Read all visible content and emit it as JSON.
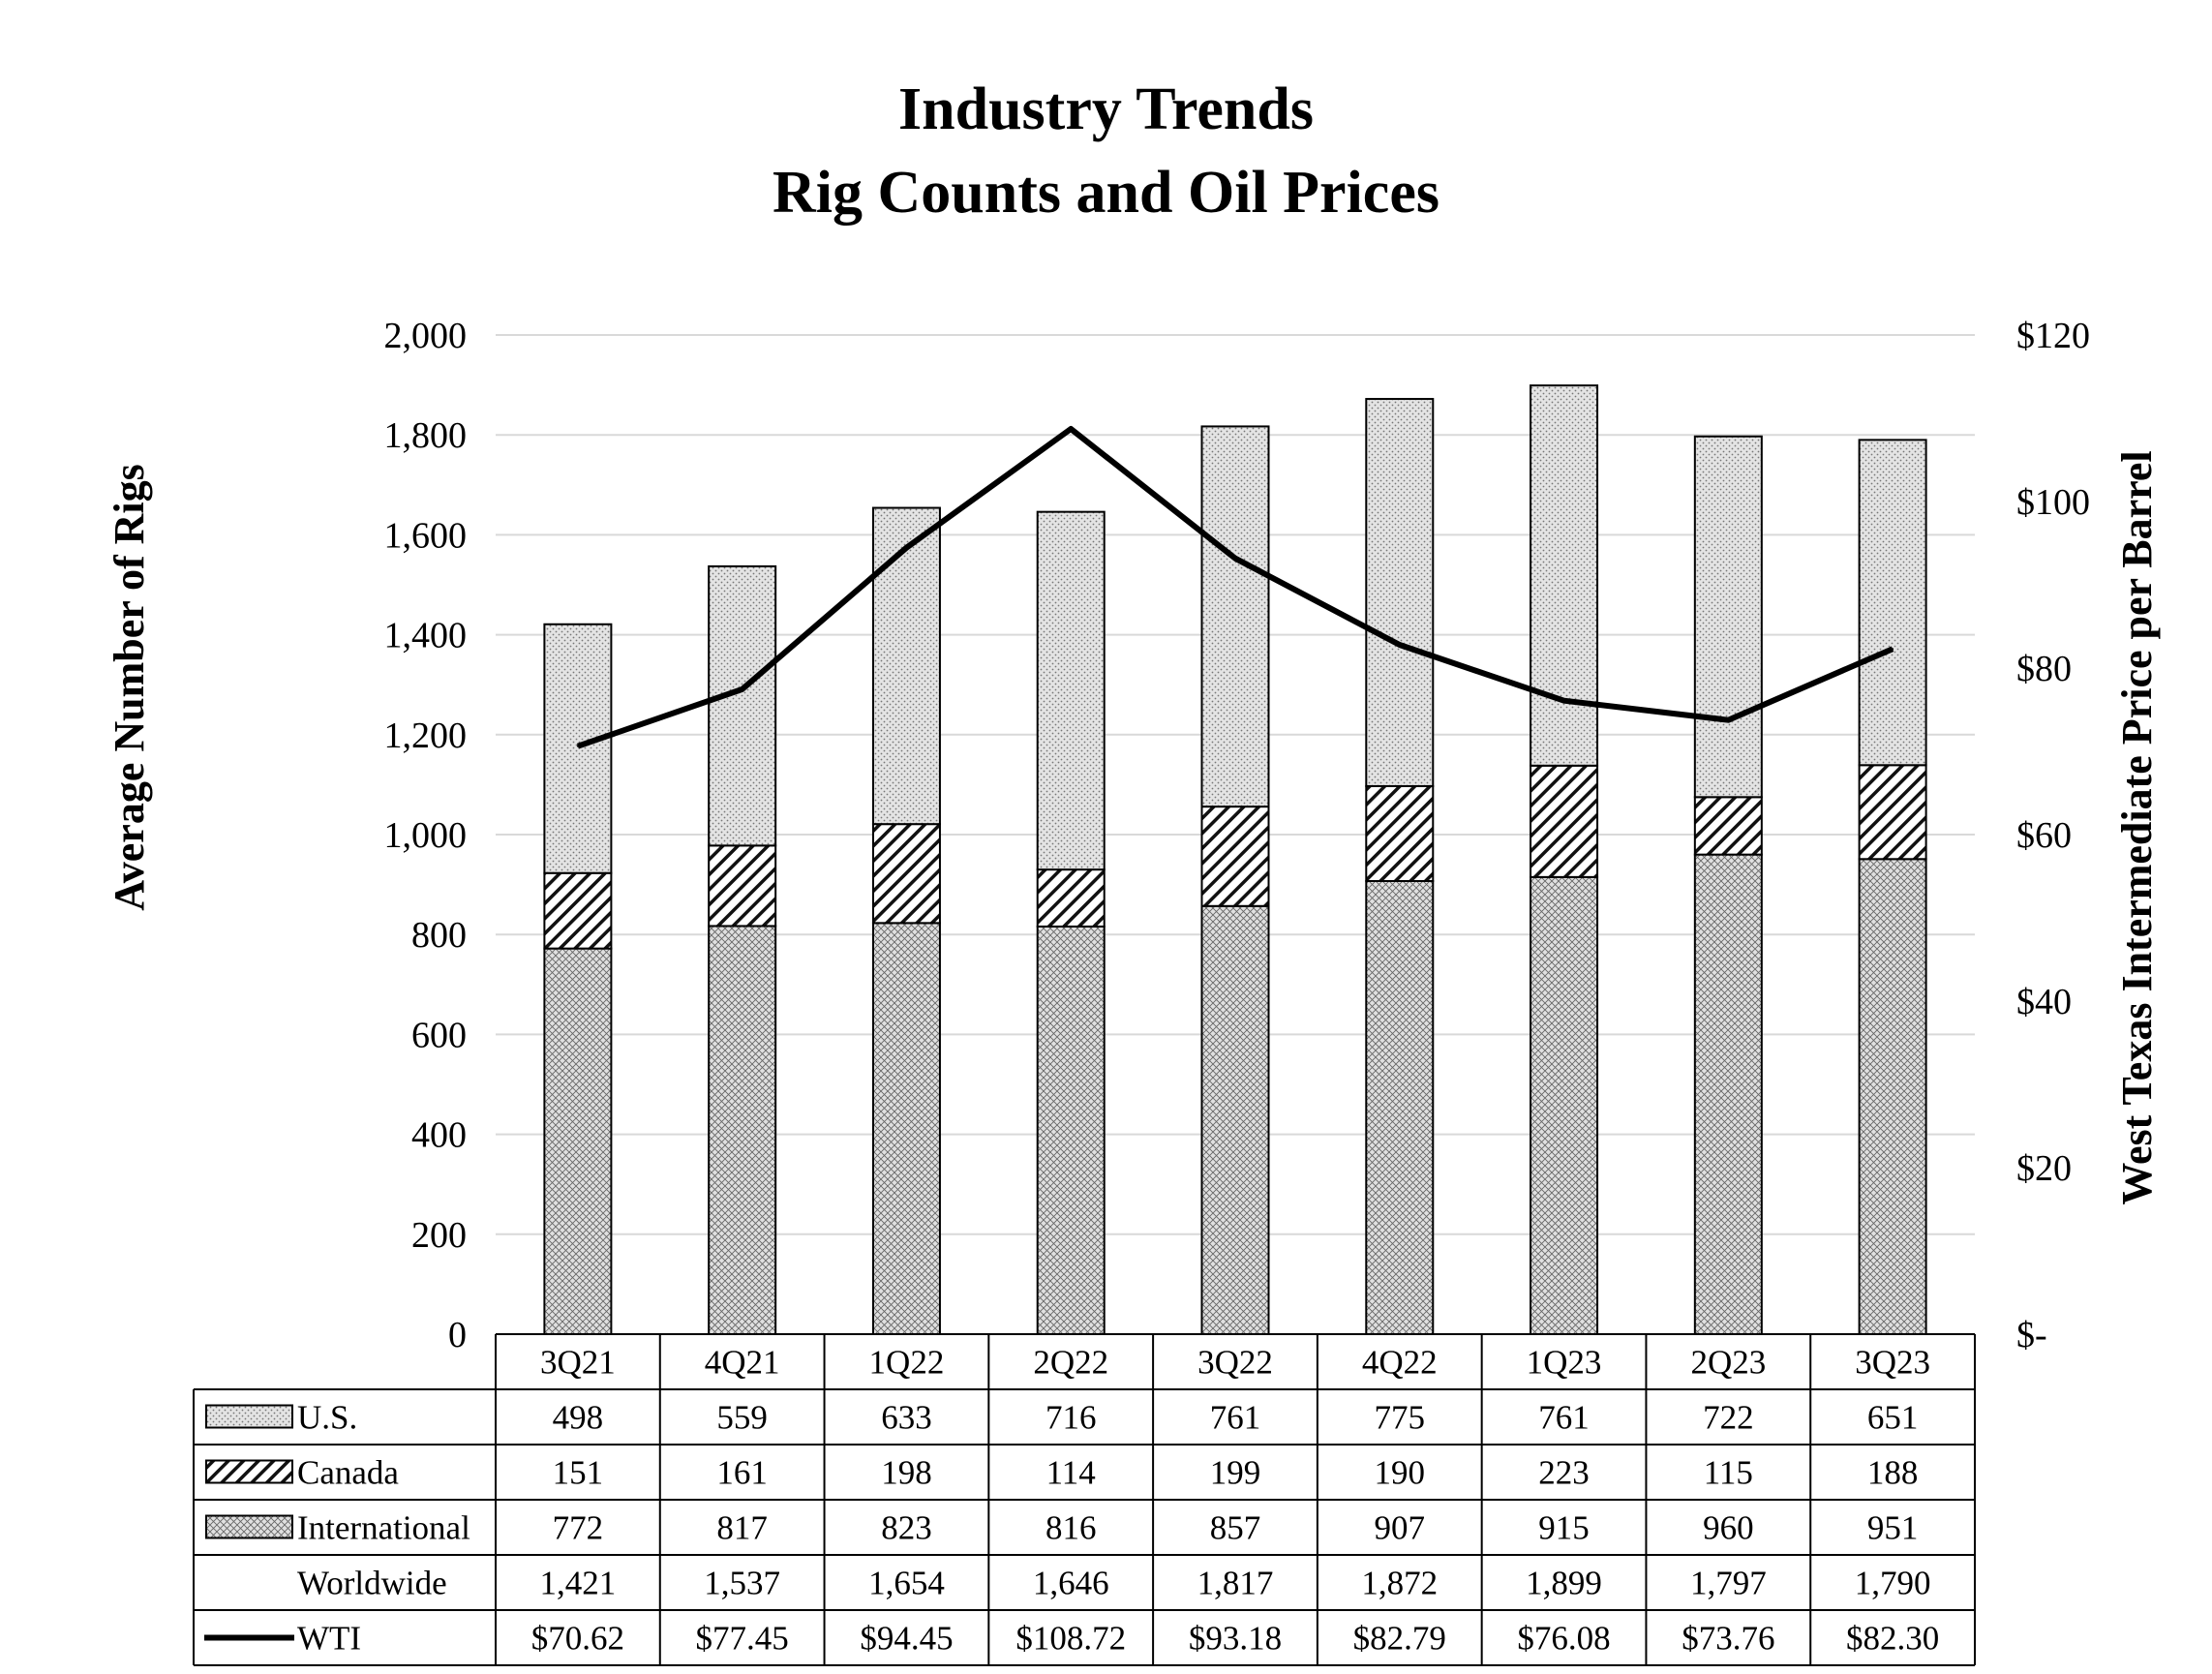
{
  "chart_data": {
    "type": "bar",
    "stacked": true,
    "title": "Industry Trends",
    "subtitle": "Rig Counts and Oil Prices",
    "ylabel": "Average Number of Rigs",
    "ylabel_right": "West Texas Intermediate Price per Barrel",
    "ylim": [
      0,
      2000
    ],
    "yticks": [
      "0",
      "200",
      "400",
      "600",
      "800",
      "1,000",
      "1,200",
      "1,400",
      "1,600",
      "1,800",
      "2,000"
    ],
    "ylim_right": [
      0,
      120
    ],
    "yticks_right": [
      "$-",
      "$20",
      "$40",
      "$60",
      "$80",
      "$100",
      "$120"
    ],
    "grid": true,
    "categories": [
      "3Q21",
      "4Q21",
      "1Q22",
      "2Q22",
      "3Q22",
      "4Q22",
      "1Q23",
      "2Q23",
      "3Q23"
    ],
    "series": [
      {
        "name": "International",
        "kind": "bar",
        "pattern": "crosshatch",
        "values": [
          772,
          817,
          823,
          816,
          857,
          907,
          915,
          960,
          951
        ],
        "labels": [
          "772",
          "817",
          "823",
          "816",
          "857",
          "907",
          "915",
          "960",
          "951"
        ]
      },
      {
        "name": "Canada",
        "kind": "bar",
        "pattern": "diagonal",
        "values": [
          151,
          161,
          198,
          114,
          199,
          190,
          223,
          115,
          188
        ],
        "labels": [
          "151",
          "161",
          "198",
          "114",
          "199",
          "190",
          "223",
          "115",
          "188"
        ]
      },
      {
        "name": "U.S.",
        "kind": "bar",
        "pattern": "dots",
        "values": [
          498,
          559,
          633,
          716,
          761,
          775,
          761,
          722,
          651
        ],
        "labels": [
          "498",
          "559",
          "633",
          "716",
          "761",
          "775",
          "761",
          "722",
          "651"
        ]
      },
      {
        "name": "WTI",
        "kind": "line",
        "axis": "right",
        "values": [
          70.62,
          77.45,
          94.45,
          108.72,
          93.18,
          82.79,
          76.08,
          73.76,
          82.3
        ],
        "labels": [
          "$70.62",
          "$77.45",
          "$94.45",
          "$108.72",
          "$93.18",
          "$82.79",
          "$76.08",
          "$73.76",
          "$82.30"
        ]
      }
    ],
    "table": {
      "row_order": [
        "U.S.",
        "Canada",
        "International",
        "Worldwide",
        "WTI"
      ],
      "worldwide": {
        "name": "Worldwide",
        "labels": [
          "1,421",
          "1,537",
          "1,654",
          "1,646",
          "1,817",
          "1,872",
          "1,899",
          "1,797",
          "1,790"
        ]
      }
    },
    "colors": {
      "bar_fill": "#d9d9d9",
      "stroke": "#000000",
      "grid": "#d9d9d9",
      "line": "#000000"
    }
  }
}
